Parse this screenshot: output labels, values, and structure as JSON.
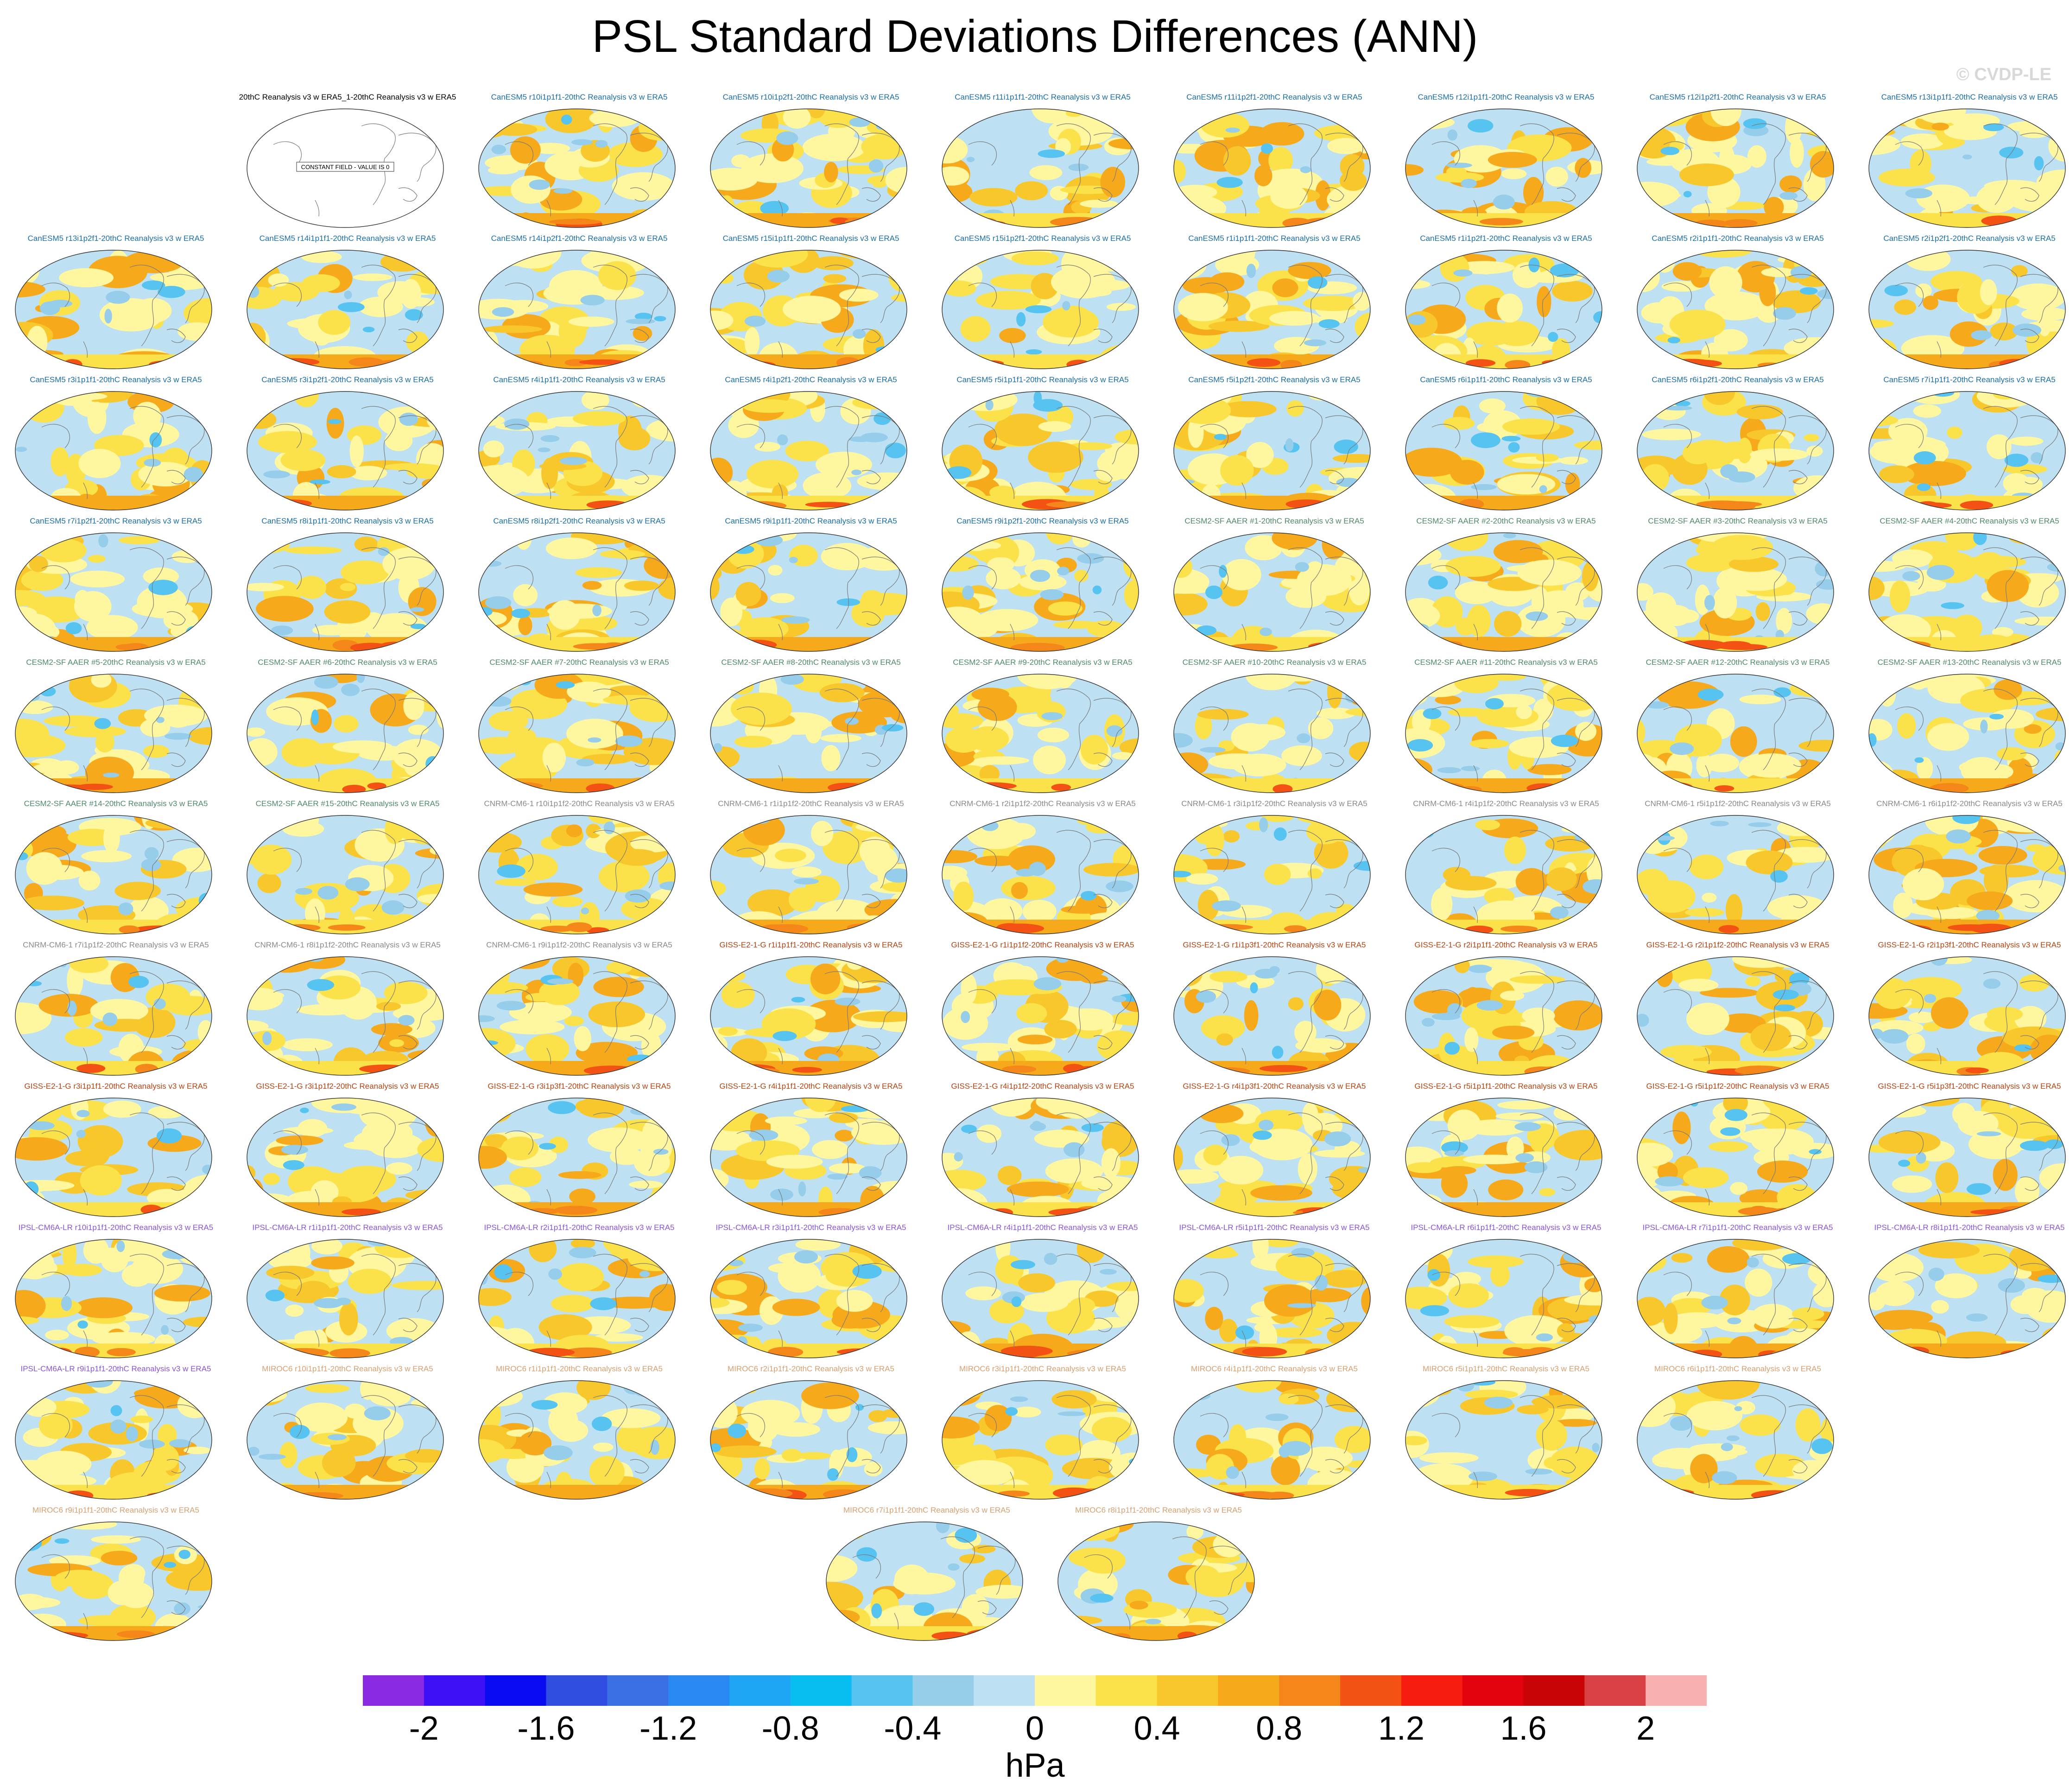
{
  "title": "PSL Standard Deviations Differences (ANN)",
  "watermark": "© CVDP-LE",
  "units": "hPa",
  "constant_field_label": "CONSTANT FIELD - VALUE IS 0",
  "colorbar": {
    "colors": [
      "#8a2be2",
      "#3e10f5",
      "#0b0bf2",
      "#2f4de0",
      "#3a6fe6",
      "#2a88f2",
      "#1ea6f5",
      "#08bdf2",
      "#56c3f0",
      "#95cdea",
      "#bde1f3",
      "#fff6a0",
      "#fbe24a",
      "#f8c72b",
      "#f6a91b",
      "#f5861a",
      "#f45214",
      "#f71c10",
      "#e2030e",
      "#c80406",
      "#d84043",
      "#f8b0b0"
    ],
    "ticks": [
      "-2",
      "-1.6",
      "-1.2",
      "-0.8",
      "-0.4",
      "0",
      "0.4",
      "0.8",
      "1.2",
      "1.6",
      "2"
    ]
  },
  "panels": [
    {
      "title": "20thC Reanalysis v3 w ERA5_1-20thC Reanalysis v3 w ERA5",
      "color": "#000000",
      "kind": "constant"
    },
    {
      "title": "CanESM5 r10i1p1f1-20thC Reanalysis v3 w ERA5",
      "color": "#1a6fa6"
    },
    {
      "title": "CanESM5 r10i1p2f1-20thC Reanalysis v3 w ERA5",
      "color": "#1a6fa6"
    },
    {
      "title": "CanESM5 r11i1p1f1-20thC Reanalysis v3 w ERA5",
      "color": "#1a6fa6"
    },
    {
      "title": "CanESM5 r11i1p2f1-20thC Reanalysis v3 w ERA5",
      "color": "#1a6fa6"
    },
    {
      "title": "CanESM5 r12i1p1f1-20thC Reanalysis v3 w ERA5",
      "color": "#1a6fa6"
    },
    {
      "title": "CanESM5 r12i1p2f1-20thC Reanalysis v3 w ERA5",
      "color": "#1a6fa6"
    },
    {
      "title": "CanESM5 r13i1p1f1-20thC Reanalysis v3 w ERA5",
      "color": "#1a6fa6"
    },
    {
      "title": "CanESM5 r13i1p2f1-20thC Reanalysis v3 w ERA5",
      "color": "#1a6fa6"
    },
    {
      "title": "CanESM5 r14i1p1f1-20thC Reanalysis v3 w ERA5",
      "color": "#1a6fa6"
    },
    {
      "title": "CanESM5 r14i1p2f1-20thC Reanalysis v3 w ERA5",
      "color": "#1a6fa6"
    },
    {
      "title": "CanESM5 r15i1p1f1-20thC Reanalysis v3 w ERA5",
      "color": "#1a6fa6"
    },
    {
      "title": "CanESM5 r15i1p2f1-20thC Reanalysis v3 w ERA5",
      "color": "#1a6fa6"
    },
    {
      "title": "CanESM5 r1i1p1f1-20thC Reanalysis v3 w ERA5",
      "color": "#1a6fa6"
    },
    {
      "title": "CanESM5 r1i1p2f1-20thC Reanalysis v3 w ERA5",
      "color": "#1a6fa6"
    },
    {
      "title": "CanESM5 r2i1p1f1-20thC Reanalysis v3 w ERA5",
      "color": "#1a6fa6"
    },
    {
      "title": "CanESM5 r2i1p2f1-20thC Reanalysis v3 w ERA5",
      "color": "#1a6fa6"
    },
    {
      "title": "CanESM5 r3i1p1f1-20thC Reanalysis v3 w ERA5",
      "color": "#1a6fa6"
    },
    {
      "title": "CanESM5 r3i1p2f1-20thC Reanalysis v3 w ERA5",
      "color": "#1a6fa6"
    },
    {
      "title": "CanESM5 r4i1p1f1-20thC Reanalysis v3 w ERA5",
      "color": "#1a6fa6"
    },
    {
      "title": "CanESM5 r4i1p2f1-20thC Reanalysis v3 w ERA5",
      "color": "#1a6fa6"
    },
    {
      "title": "CanESM5 r5i1p1f1-20thC Reanalysis v3 w ERA5",
      "color": "#1a6fa6"
    },
    {
      "title": "CanESM5 r5i1p2f1-20thC Reanalysis v3 w ERA5",
      "color": "#1a6fa6"
    },
    {
      "title": "CanESM5 r6i1p1f1-20thC Reanalysis v3 w ERA5",
      "color": "#1a6fa6"
    },
    {
      "title": "CanESM5 r6i1p2f1-20thC Reanalysis v3 w ERA5",
      "color": "#1a6fa6"
    },
    {
      "title": "CanESM5 r7i1p1f1-20thC Reanalysis v3 w ERA5",
      "color": "#1a6fa6"
    },
    {
      "title": "CanESM5 r7i1p2f1-20thC Reanalysis v3 w ERA5",
      "color": "#1a6fa6"
    },
    {
      "title": "CanESM5 r8i1p1f1-20thC Reanalysis v3 w ERA5",
      "color": "#1a6fa6"
    },
    {
      "title": "CanESM5 r8i1p2f1-20thC Reanalysis v3 w ERA5",
      "color": "#1a6fa6"
    },
    {
      "title": "CanESM5 r9i1p1f1-20thC Reanalysis v3 w ERA5",
      "color": "#1a6fa6"
    },
    {
      "title": "CanESM5 r9i1p2f1-20thC Reanalysis v3 w ERA5",
      "color": "#1a6fa6"
    },
    {
      "title": "CESM2-SF AAER #1-20thC Reanalysis v3 w ERA5",
      "color": "#4f8a6a"
    },
    {
      "title": "CESM2-SF AAER #2-20thC Reanalysis v3 w ERA5",
      "color": "#4f8a6a"
    },
    {
      "title": "CESM2-SF AAER #3-20thC Reanalysis v3 w ERA5",
      "color": "#4f8a6a"
    },
    {
      "title": "CESM2-SF AAER #4-20thC Reanalysis v3 w ERA5",
      "color": "#4f8a6a"
    },
    {
      "title": "CESM2-SF AAER #5-20thC Reanalysis v3 w ERA5",
      "color": "#4f8a6a"
    },
    {
      "title": "CESM2-SF AAER #6-20thC Reanalysis v3 w ERA5",
      "color": "#4f8a6a"
    },
    {
      "title": "CESM2-SF AAER #7-20thC Reanalysis v3 w ERA5",
      "color": "#4f8a6a"
    },
    {
      "title": "CESM2-SF AAER #8-20thC Reanalysis v3 w ERA5",
      "color": "#4f8a6a"
    },
    {
      "title": "CESM2-SF AAER #9-20thC Reanalysis v3 w ERA5",
      "color": "#4f8a6a"
    },
    {
      "title": "CESM2-SF AAER #10-20thC Reanalysis v3 w ERA5",
      "color": "#4f8a6a"
    },
    {
      "title": "CESM2-SF AAER #11-20thC Reanalysis v3 w ERA5",
      "color": "#4f8a6a"
    },
    {
      "title": "CESM2-SF AAER #12-20thC Reanalysis v3 w ERA5",
      "color": "#4f8a6a"
    },
    {
      "title": "CESM2-SF AAER #13-20thC Reanalysis v3 w ERA5",
      "color": "#4f8a6a"
    },
    {
      "title": "CESM2-SF AAER #14-20thC Reanalysis v3 w ERA5",
      "color": "#4f8a6a"
    },
    {
      "title": "CESM2-SF AAER #15-20thC Reanalysis v3 w ERA5",
      "color": "#4f8a6a"
    },
    {
      "title": "CNRM-CM6-1 r10i1p1f2-20thC Reanalysis v3 w ERA5",
      "color": "#8a8a8a"
    },
    {
      "title": "CNRM-CM6-1 r1i1p1f2-20thC Reanalysis v3 w ERA5",
      "color": "#8a8a8a"
    },
    {
      "title": "CNRM-CM6-1 r2i1p1f2-20thC Reanalysis v3 w ERA5",
      "color": "#8a8a8a"
    },
    {
      "title": "CNRM-CM6-1 r3i1p1f2-20thC Reanalysis v3 w ERA5",
      "color": "#8a8a8a"
    },
    {
      "title": "CNRM-CM6-1 r4i1p1f2-20thC Reanalysis v3 w ERA5",
      "color": "#8a8a8a"
    },
    {
      "title": "CNRM-CM6-1 r5i1p1f2-20thC Reanalysis v3 w ERA5",
      "color": "#8a8a8a"
    },
    {
      "title": "CNRM-CM6-1 r6i1p1f2-20thC Reanalysis v3 w ERA5",
      "color": "#8a8a8a"
    },
    {
      "title": "CNRM-CM6-1 r7i1p1f2-20thC Reanalysis v3 w ERA5",
      "color": "#8a8a8a"
    },
    {
      "title": "CNRM-CM6-1 r8i1p1f2-20thC Reanalysis v3 w ERA5",
      "color": "#8a8a8a"
    },
    {
      "title": "CNRM-CM6-1 r9i1p1f2-20thC Reanalysis v3 w ERA5",
      "color": "#8a8a8a"
    },
    {
      "title": "GISS-E2-1-G r1i1p1f1-20thC Reanalysis v3 w ERA5",
      "color": "#b34410"
    },
    {
      "title": "GISS-E2-1-G r1i1p1f2-20thC Reanalysis v3 w ERA5",
      "color": "#b34410"
    },
    {
      "title": "GISS-E2-1-G r1i1p3f1-20thC Reanalysis v3 w ERA5",
      "color": "#b34410"
    },
    {
      "title": "GISS-E2-1-G r2i1p1f1-20thC Reanalysis v3 w ERA5",
      "color": "#b34410"
    },
    {
      "title": "GISS-E2-1-G r2i1p1f2-20thC Reanalysis v3 w ERA5",
      "color": "#b34410"
    },
    {
      "title": "GISS-E2-1-G r2i1p3f1-20thC Reanalysis v3 w ERA5",
      "color": "#b34410"
    },
    {
      "title": "GISS-E2-1-G r3i1p1f1-20thC Reanalysis v3 w ERA5",
      "color": "#b34410"
    },
    {
      "title": "GISS-E2-1-G r3i1p1f2-20thC Reanalysis v3 w ERA5",
      "color": "#b34410"
    },
    {
      "title": "GISS-E2-1-G r3i1p3f1-20thC Reanalysis v3 w ERA5",
      "color": "#b34410"
    },
    {
      "title": "GISS-E2-1-G r4i1p1f1-20thC Reanalysis v3 w ERA5",
      "color": "#b34410"
    },
    {
      "title": "GISS-E2-1-G r4i1p1f2-20thC Reanalysis v3 w ERA5",
      "color": "#b34410"
    },
    {
      "title": "GISS-E2-1-G r4i1p3f1-20thC Reanalysis v3 w ERA5",
      "color": "#b34410"
    },
    {
      "title": "GISS-E2-1-G r5i1p1f1-20thC Reanalysis v3 w ERA5",
      "color": "#b34410"
    },
    {
      "title": "GISS-E2-1-G r5i1p1f2-20thC Reanalysis v3 w ERA5",
      "color": "#b34410"
    },
    {
      "title": "GISS-E2-1-G r5i1p3f1-20thC Reanalysis v3 w ERA5",
      "color": "#b34410"
    },
    {
      "title": "IPSL-CM6A-LR r10i1p1f1-20thC Reanalysis v3 w ERA5",
      "color": "#8a55d6"
    },
    {
      "title": "IPSL-CM6A-LR r1i1p1f1-20thC Reanalysis v3 w ERA5",
      "color": "#8a55d6"
    },
    {
      "title": "IPSL-CM6A-LR r2i1p1f1-20thC Reanalysis v3 w ERA5",
      "color": "#8a55d6"
    },
    {
      "title": "IPSL-CM6A-LR r3i1p1f1-20thC Reanalysis v3 w ERA5",
      "color": "#8a55d6"
    },
    {
      "title": "IPSL-CM6A-LR r4i1p1f1-20thC Reanalysis v3 w ERA5",
      "color": "#8a55d6"
    },
    {
      "title": "IPSL-CM6A-LR r5i1p1f1-20thC Reanalysis v3 w ERA5",
      "color": "#8a55d6"
    },
    {
      "title": "IPSL-CM6A-LR r6i1p1f1-20thC Reanalysis v3 w ERA5",
      "color": "#8a55d6"
    },
    {
      "title": "IPSL-CM6A-LR r7i1p1f1-20thC Reanalysis v3 w ERA5",
      "color": "#8a55d6"
    },
    {
      "title": "IPSL-CM6A-LR r8i1p1f1-20thC Reanalysis v3 w ERA5",
      "color": "#8a55d6"
    },
    {
      "title": "IPSL-CM6A-LR r9i1p1f1-20thC Reanalysis v3 w ERA5",
      "color": "#8a55d6"
    },
    {
      "title": "MIROC6 r10i1p1f1-20thC Reanalysis v3 w ERA5",
      "color": "#d8a070"
    },
    {
      "title": "MIROC6 r1i1p1f1-20thC Reanalysis v3 w ERA5",
      "color": "#d8a070"
    },
    {
      "title": "MIROC6 r2i1p1f1-20thC Reanalysis v3 w ERA5",
      "color": "#d8a070"
    },
    {
      "title": "MIROC6 r3i1p1f1-20thC Reanalysis v3 w ERA5",
      "color": "#d8a070"
    },
    {
      "title": "MIROC6 r4i1p1f1-20thC Reanalysis v3 w ERA5",
      "color": "#d8a070"
    },
    {
      "title": "MIROC6 r5i1p1f1-20thC Reanalysis v3 w ERA5",
      "color": "#d8a070"
    },
    {
      "title": "MIROC6 r6i1p1f1-20thC Reanalysis v3 w ERA5",
      "color": "#d8a070"
    },
    {
      "title": "MIROC6 r7i1p1f1-20thC Reanalysis v3 w ERA5",
      "color": "#d8a070"
    },
    {
      "title": "MIROC6 r8i1p1f1-20thC Reanalysis v3 w ERA5",
      "color": "#d8a070"
    },
    {
      "title": "MIROC6 r9i1p1f1-20thC Reanalysis v3 w ERA5",
      "color": "#d8a070"
    }
  ]
}
